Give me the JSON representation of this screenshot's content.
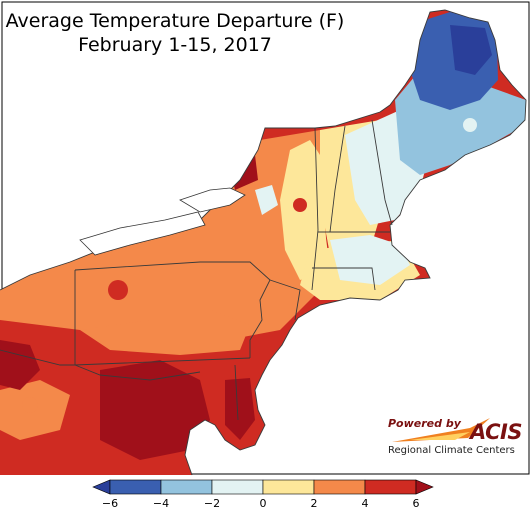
{
  "title": {
    "line1": "Average Temperature Departure (F)",
    "line2": "February 1-15, 2017"
  },
  "map": {
    "region": "Northeast United States",
    "states": [
      "ME",
      "NH",
      "VT",
      "MA",
      "RI",
      "CT",
      "NY",
      "NJ",
      "PA",
      "DE",
      "MD",
      "WV",
      "DC"
    ]
  },
  "legend": {
    "ticks": [
      "−6",
      "−4",
      "−2",
      "0",
      "2",
      "4",
      "6"
    ],
    "bins": [
      {
        "range": [
          -6,
          -4
        ],
        "color": "#3a5fb0"
      },
      {
        "range": [
          -4,
          -2
        ],
        "color": "#93c3de"
      },
      {
        "range": [
          -2,
          0
        ],
        "color": "#e3f3f3"
      },
      {
        "range": [
          0,
          2
        ],
        "color": "#fde79a"
      },
      {
        "range": [
          2,
          4
        ],
        "color": "#f4894a"
      },
      {
        "range": [
          4,
          6
        ],
        "color": "#cf2b22"
      }
    ],
    "under_color": "#2a3f9a",
    "over_color": "#a0101a"
  },
  "logo": {
    "powered_by": "Powered by",
    "name": "ACIS",
    "subtitle": "Regional Climate Centers"
  }
}
